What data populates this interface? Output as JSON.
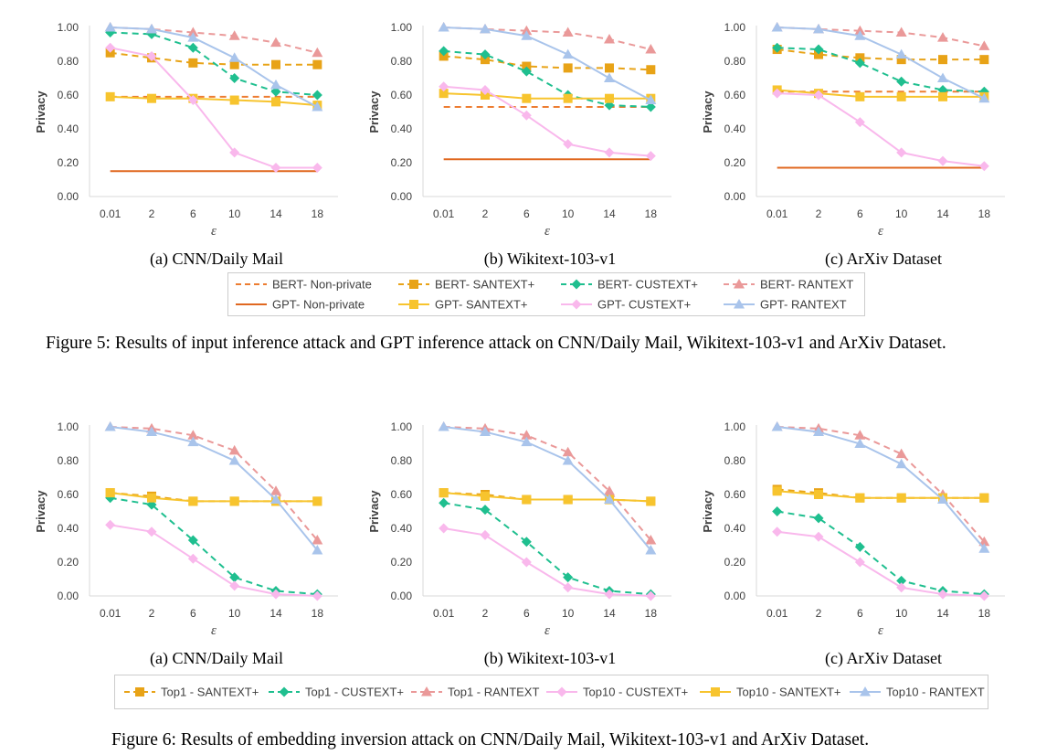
{
  "ticks": {
    "x": [
      "0.01",
      "2",
      "6",
      "10",
      "14",
      "18"
    ],
    "y": [
      "0.00",
      "0.20",
      "0.40",
      "0.60",
      "0.80",
      "1.00"
    ],
    "ylabel": "Privacy",
    "xlabel": "ε"
  },
  "figure5": {
    "caption": "Figure 5: Results of input inference attack and GPT inference attack on CNN/Daily Mail, Wikitext-103-v1 and ArXiv Dataset.",
    "legend": [
      "BERT- Non-private",
      "BERT- SANTEXT+",
      "BERT- CUSTEXT+",
      "BERT- RANTEXT",
      "GPT- Non-private",
      "GPT- SANTEXT+",
      "GPT- CUSTEXT+",
      "GPT- RANTEXT"
    ],
    "styles": [
      {
        "color": "#ED7D31",
        "dash": true,
        "marker": "none"
      },
      {
        "color": "#E8A317",
        "dash": true,
        "marker": "square"
      },
      {
        "color": "#1FBF8F",
        "dash": true,
        "marker": "diamond"
      },
      {
        "color": "#EA9999",
        "dash": true,
        "marker": "triangle"
      },
      {
        "color": "#E06820",
        "dash": false,
        "marker": "none"
      },
      {
        "color": "#F7C42E",
        "dash": false,
        "marker": "square"
      },
      {
        "color": "#F9B8EC",
        "dash": false,
        "marker": "diamond"
      },
      {
        "color": "#A9C4EB",
        "dash": false,
        "marker": "triangle"
      }
    ],
    "subcaptions": [
      "(a)  CNN/Daily Mail",
      "(b)  Wikitext-103-v1",
      "(c)  ArXiv Dataset"
    ]
  },
  "figure6": {
    "caption": "Figure 6: Results of embedding inversion attack on CNN/Daily Mail, Wikitext-103-v1 and ArXiv Dataset.",
    "legend": [
      "Top1 - SANTEXT+",
      "Top1 - CUSTEXT+",
      "Top1 - RANTEXT",
      "Top10 - CUSTEXT+",
      "Top10 - SANTEXT+",
      "Top10 - RANTEXT"
    ],
    "styles": [
      {
        "color": "#E8A317",
        "dash": true,
        "marker": "square"
      },
      {
        "color": "#1FBF8F",
        "dash": true,
        "marker": "diamond"
      },
      {
        "color": "#EA9999",
        "dash": true,
        "marker": "triangle"
      },
      {
        "color": "#F9B8EC",
        "dash": false,
        "marker": "diamond"
      },
      {
        "color": "#F7C42E",
        "dash": false,
        "marker": "square"
      },
      {
        "color": "#A9C4EB",
        "dash": false,
        "marker": "triangle"
      }
    ],
    "subcaptions": [
      "(a)  CNN/Daily Mail",
      "(b)  Wikitext-103-v1",
      "(c)  ArXiv Dataset"
    ]
  },
  "chart_data": [
    {
      "type": "line",
      "x": [
        "0.01",
        "2",
        "6",
        "10",
        "14",
        "18"
      ],
      "ylim": [
        0,
        1
      ],
      "ylabel": "Privacy",
      "xlabel": "ε",
      "series": [
        {
          "name": "BERT- Non-private",
          "values": [
            0.59,
            0.59,
            0.59,
            0.59,
            0.59,
            0.59
          ]
        },
        {
          "name": "BERT- SANTEXT+",
          "values": [
            0.85,
            0.82,
            0.79,
            0.78,
            0.78,
            0.78
          ]
        },
        {
          "name": "BERT- CUSTEXT+",
          "values": [
            0.97,
            0.96,
            0.88,
            0.7,
            0.62,
            0.6
          ]
        },
        {
          "name": "BERT- RANTEXT",
          "values": [
            1.0,
            0.99,
            0.97,
            0.95,
            0.91,
            0.85
          ]
        },
        {
          "name": "GPT- Non-private",
          "values": [
            0.15,
            0.15,
            0.15,
            0.15,
            0.15,
            0.15
          ]
        },
        {
          "name": "GPT- SANTEXT+",
          "values": [
            0.59,
            0.58,
            0.58,
            0.57,
            0.56,
            0.54
          ]
        },
        {
          "name": "GPT- CUSTEXT+",
          "values": [
            0.88,
            0.83,
            0.57,
            0.26,
            0.17,
            0.17
          ]
        },
        {
          "name": "GPT- RANTEXT",
          "values": [
            1.0,
            0.99,
            0.94,
            0.82,
            0.66,
            0.53
          ]
        }
      ]
    },
    {
      "type": "line",
      "x": [
        "0.01",
        "2",
        "6",
        "10",
        "14",
        "18"
      ],
      "ylim": [
        0,
        1
      ],
      "ylabel": "Privacy",
      "xlabel": "ε",
      "series": [
        {
          "name": "BERT- Non-private",
          "values": [
            0.53,
            0.53,
            0.53,
            0.53,
            0.53,
            0.53
          ]
        },
        {
          "name": "BERT- SANTEXT+",
          "values": [
            0.83,
            0.81,
            0.77,
            0.76,
            0.76,
            0.75
          ]
        },
        {
          "name": "BERT- CUSTEXT+",
          "values": [
            0.86,
            0.84,
            0.74,
            0.6,
            0.54,
            0.53
          ]
        },
        {
          "name": "BERT- RANTEXT",
          "values": [
            1.0,
            0.99,
            0.98,
            0.97,
            0.93,
            0.87
          ]
        },
        {
          "name": "GPT- Non-private",
          "values": [
            0.22,
            0.22,
            0.22,
            0.22,
            0.22,
            0.22
          ]
        },
        {
          "name": "GPT- SANTEXT+",
          "values": [
            0.61,
            0.6,
            0.58,
            0.58,
            0.58,
            0.58
          ]
        },
        {
          "name": "GPT- CUSTEXT+",
          "values": [
            0.65,
            0.63,
            0.48,
            0.31,
            0.26,
            0.24
          ]
        },
        {
          "name": "GPT- RANTEXT",
          "values": [
            1.0,
            0.99,
            0.95,
            0.84,
            0.7,
            0.57
          ]
        }
      ]
    },
    {
      "type": "line",
      "x": [
        "0.01",
        "2",
        "6",
        "10",
        "14",
        "18"
      ],
      "ylim": [
        0,
        1
      ],
      "ylabel": "Privacy",
      "xlabel": "ε",
      "series": [
        {
          "name": "BERT- Non-private",
          "values": [
            0.62,
            0.62,
            0.62,
            0.62,
            0.62,
            0.62
          ]
        },
        {
          "name": "BERT- SANTEXT+",
          "values": [
            0.87,
            0.84,
            0.82,
            0.81,
            0.81,
            0.81
          ]
        },
        {
          "name": "BERT- CUSTEXT+",
          "values": [
            0.88,
            0.87,
            0.79,
            0.68,
            0.63,
            0.62
          ]
        },
        {
          "name": "BERT- RANTEXT",
          "values": [
            1.0,
            0.99,
            0.98,
            0.97,
            0.94,
            0.89
          ]
        },
        {
          "name": "GPT- Non-private",
          "values": [
            0.17,
            0.17,
            0.17,
            0.17,
            0.17,
            0.17
          ]
        },
        {
          "name": "GPT- SANTEXT+",
          "values": [
            0.63,
            0.61,
            0.59,
            0.59,
            0.59,
            0.59
          ]
        },
        {
          "name": "GPT- CUSTEXT+",
          "values": [
            0.61,
            0.6,
            0.44,
            0.26,
            0.21,
            0.18
          ]
        },
        {
          "name": "GPT- RANTEXT",
          "values": [
            1.0,
            0.99,
            0.95,
            0.84,
            0.7,
            0.58
          ]
        }
      ]
    },
    {
      "type": "line",
      "x": [
        "0.01",
        "2",
        "6",
        "10",
        "14",
        "18"
      ],
      "ylim": [
        0,
        1
      ],
      "ylabel": "Privacy",
      "xlabel": "ε",
      "series": [
        {
          "name": "Top1 - SANTEXT+",
          "values": [
            0.61,
            0.59,
            0.56,
            0.56,
            0.56,
            0.56
          ]
        },
        {
          "name": "Top1 - CUSTEXT+",
          "values": [
            0.58,
            0.54,
            0.33,
            0.11,
            0.03,
            0.01
          ]
        },
        {
          "name": "Top1 - RANTEXT",
          "values": [
            1.0,
            0.99,
            0.95,
            0.86,
            0.62,
            0.33
          ]
        },
        {
          "name": "Top10 - CUSTEXT+",
          "values": [
            0.42,
            0.38,
            0.22,
            0.06,
            0.01,
            0.0
          ]
        },
        {
          "name": "Top10 - SANTEXT+",
          "values": [
            0.61,
            0.58,
            0.56,
            0.56,
            0.56,
            0.56
          ]
        },
        {
          "name": "Top10 - RANTEXT",
          "values": [
            1.0,
            0.97,
            0.91,
            0.8,
            0.57,
            0.27
          ]
        }
      ]
    },
    {
      "type": "line",
      "x": [
        "0.01",
        "2",
        "6",
        "10",
        "14",
        "18"
      ],
      "ylim": [
        0,
        1
      ],
      "ylabel": "Privacy",
      "xlabel": "ε",
      "series": [
        {
          "name": "Top1 - SANTEXT+",
          "values": [
            0.61,
            0.6,
            0.57,
            0.57,
            0.57,
            0.56
          ]
        },
        {
          "name": "Top1 - CUSTEXT+",
          "values": [
            0.55,
            0.51,
            0.32,
            0.11,
            0.03,
            0.01
          ]
        },
        {
          "name": "Top1 - RANTEXT",
          "values": [
            1.0,
            0.99,
            0.95,
            0.85,
            0.62,
            0.33
          ]
        },
        {
          "name": "Top10 - CUSTEXT+",
          "values": [
            0.4,
            0.36,
            0.2,
            0.05,
            0.01,
            0.0
          ]
        },
        {
          "name": "Top10 - SANTEXT+",
          "values": [
            0.61,
            0.59,
            0.57,
            0.57,
            0.57,
            0.56
          ]
        },
        {
          "name": "Top10 - RANTEXT",
          "values": [
            1.0,
            0.97,
            0.91,
            0.8,
            0.57,
            0.27
          ]
        }
      ]
    },
    {
      "type": "line",
      "x": [
        "0.01",
        "2",
        "6",
        "10",
        "14",
        "18"
      ],
      "ylim": [
        0,
        1
      ],
      "ylabel": "Privacy",
      "xlabel": "ε",
      "series": [
        {
          "name": "Top1 - SANTEXT+",
          "values": [
            0.63,
            0.61,
            0.58,
            0.58,
            0.58,
            0.58
          ]
        },
        {
          "name": "Top1 - CUSTEXT+",
          "values": [
            0.5,
            0.46,
            0.29,
            0.09,
            0.03,
            0.01
          ]
        },
        {
          "name": "Top1 - RANTEXT",
          "values": [
            1.0,
            0.99,
            0.95,
            0.84,
            0.6,
            0.32
          ]
        },
        {
          "name": "Top10 - CUSTEXT+",
          "values": [
            0.38,
            0.35,
            0.2,
            0.05,
            0.01,
            0.0
          ]
        },
        {
          "name": "Top10 - SANTEXT+",
          "values": [
            0.62,
            0.6,
            0.58,
            0.58,
            0.58,
            0.58
          ]
        },
        {
          "name": "Top10 - RANTEXT",
          "values": [
            1.0,
            0.97,
            0.9,
            0.78,
            0.57,
            0.28
          ]
        }
      ]
    }
  ]
}
